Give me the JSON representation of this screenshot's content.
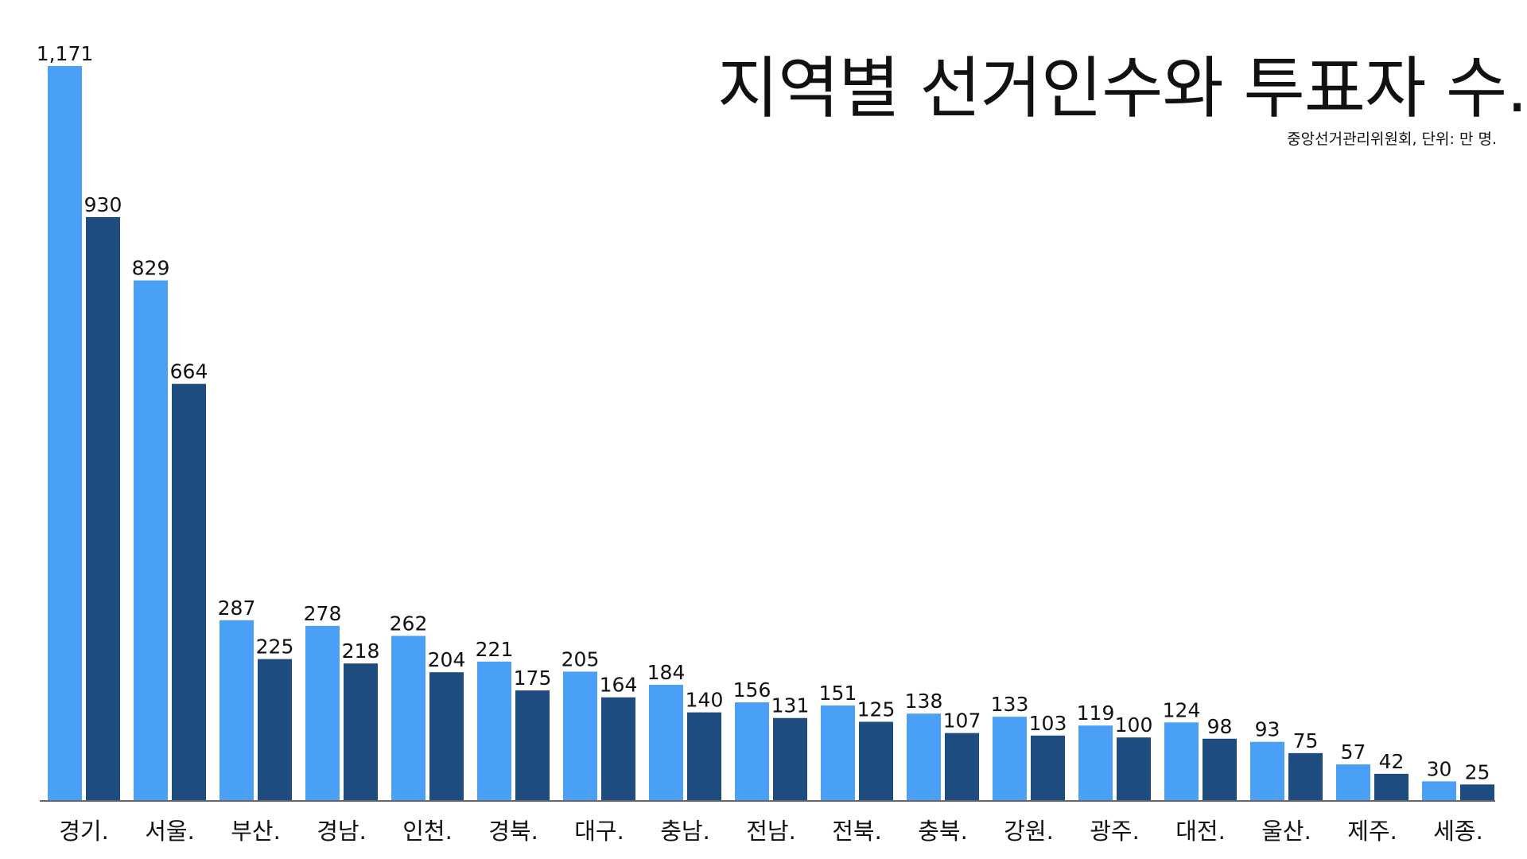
{
  "chart_data": {
    "type": "bar",
    "title": "지역별 선거인수와 투표자 수.",
    "subtitle": "중앙선거관리위원회, 단위: 만 명.",
    "categories": [
      "경기.",
      "서울.",
      "부산.",
      "경남.",
      "인천.",
      "경북.",
      "대구.",
      "충남.",
      "전남.",
      "전북.",
      "충북.",
      "강원.",
      "광주.",
      "대전.",
      "울산.",
      "제주.",
      "세종."
    ],
    "series": [
      {
        "values": [
          1171,
          829,
          287,
          278,
          262,
          221,
          205,
          184,
          156,
          151,
          138,
          133,
          119,
          124,
          93,
          57,
          30
        ],
        "labels": [
          "1,171",
          "829",
          "287",
          "278",
          "262",
          "221",
          "205",
          "184",
          "156",
          "151",
          "138",
          "133",
          "119",
          "124",
          "93",
          "57",
          "30"
        ],
        "color": "#4aa0f7"
      },
      {
        "values": [
          930,
          664,
          225,
          218,
          204,
          175,
          164,
          140,
          131,
          125,
          107,
          103,
          100,
          98,
          75,
          42,
          25
        ],
        "labels": [
          "930",
          "664",
          "225",
          "218",
          "204",
          "175",
          "164",
          "140",
          "131",
          "125",
          "107",
          "103",
          "100",
          "98",
          "75",
          "42",
          "25"
        ],
        "color": "#1f4c7e"
      }
    ],
    "ylim": [
      0,
      1171
    ],
    "grid": false,
    "legend": "none"
  }
}
